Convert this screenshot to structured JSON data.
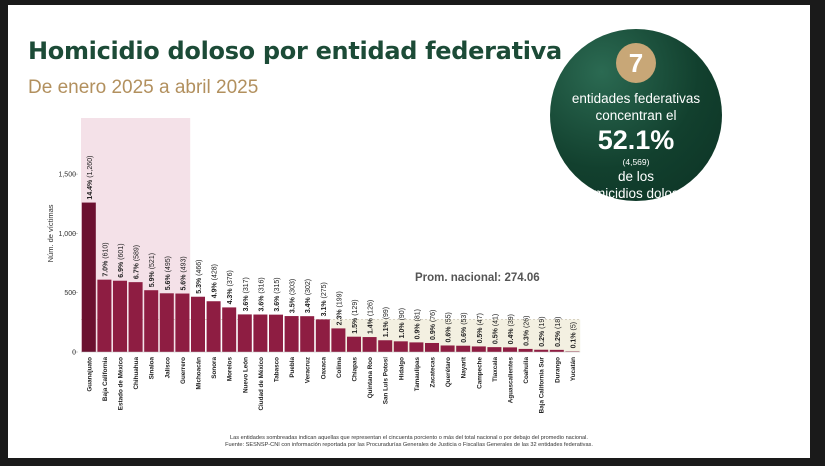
{
  "header": {
    "title": "Homicidio doloso por entidad federativa",
    "subtitle": "De enero 2025 a abril 2025"
  },
  "callout": {
    "number": "7",
    "line1": "entidades federativas",
    "line2": "concentran el",
    "percent": "52.1%",
    "count": "(4,569)",
    "line3": "de los",
    "line4": "homicidios dolosos"
  },
  "footnote": {
    "line1": "Las entidades sombreadas indican aquellas que representan el cincuenta porciento o más del total nacional o por debajo del promedio nacional.",
    "line2": "Fuente: SESNSP-CNI con información reportada por las Procuradurías Generales de Justicia o Fiscalías Generales de las 32 entidades federativas."
  },
  "colors": {
    "title": "#1c4b37",
    "subtitle": "#b2905e",
    "bar_dark": "#6b1030",
    "bar_mid": "#8e1d42",
    "highlight_top": "#f4e1e8",
    "highlight_low": "#f3f0e1"
  },
  "chart_data": {
    "type": "bar",
    "ylabel": "Núm. de víctimas",
    "ylim": [
      0,
      1800
    ],
    "yticks": [
      0,
      500,
      1000,
      1500
    ],
    "ytick_labels": [
      "0",
      "500",
      "1,000",
      "1,500"
    ],
    "average_label": "Prom. nacional: 274.06",
    "average_value": 274.06,
    "categories": [
      "Guanajuato",
      "Baja California",
      "Estado de México",
      "Chihuahua",
      "Sinaloa",
      "Jalisco",
      "Guerrero",
      "Michoacán",
      "Sonora",
      "Morelos",
      "Nuevo León",
      "Ciudad de México",
      "Tabasco",
      "Puebla",
      "Veracruz",
      "Oaxaca",
      "Colima",
      "Chiapas",
      "Quintana Roo",
      "San Luis Potosí",
      "Hidalgo",
      "Tamaulipas",
      "Zacatecas",
      "Querétaro",
      "Nayarit",
      "Campeche",
      "Tlaxcala",
      "Aguascalientes",
      "Coahuila",
      "Baja California Sur",
      "Durango",
      "Yucatán"
    ],
    "values": [
      1260,
      610,
      601,
      589,
      521,
      495,
      493,
      466,
      428,
      376,
      317,
      316,
      315,
      303,
      302,
      275,
      199,
      129,
      126,
      99,
      90,
      81,
      76,
      55,
      53,
      47,
      41,
      39,
      26,
      19,
      18,
      5
    ],
    "pct_labels": [
      "14.4%",
      "7.0%",
      "6.9%",
      "6.7%",
      "5.9%",
      "5.6%",
      "5.6%",
      "5.3%",
      "4.9%",
      "4.3%",
      "3.6%",
      "3.6%",
      "3.6%",
      "3.5%",
      "3.4%",
      "3.1%",
      "2.3%",
      "1.5%",
      "1.4%",
      "1.1%",
      "1.0%",
      "0.9%",
      "0.9%",
      "0.6%",
      "0.6%",
      "0.5%",
      "0.5%",
      "0.4%",
      "0.3%",
      "0.2%",
      "0.2%",
      "0.1%"
    ],
    "count_labels": [
      "(1,260)",
      "(610)",
      "(601)",
      "(589)",
      "(521)",
      "(495)",
      "(493)",
      "(466)",
      "(428)",
      "(376)",
      "(317)",
      "(316)",
      "(315)",
      "(303)",
      "(302)",
      "(275)",
      "(199)",
      "(129)",
      "(126)",
      "(99)",
      "(90)",
      "(81)",
      "(76)",
      "(55)",
      "(53)",
      "(47)",
      "(41)",
      "(39)",
      "(26)",
      "(19)",
      "(18)",
      "(5)"
    ],
    "highlight_top_count": 7,
    "highlight_below_average_from": 16
  }
}
